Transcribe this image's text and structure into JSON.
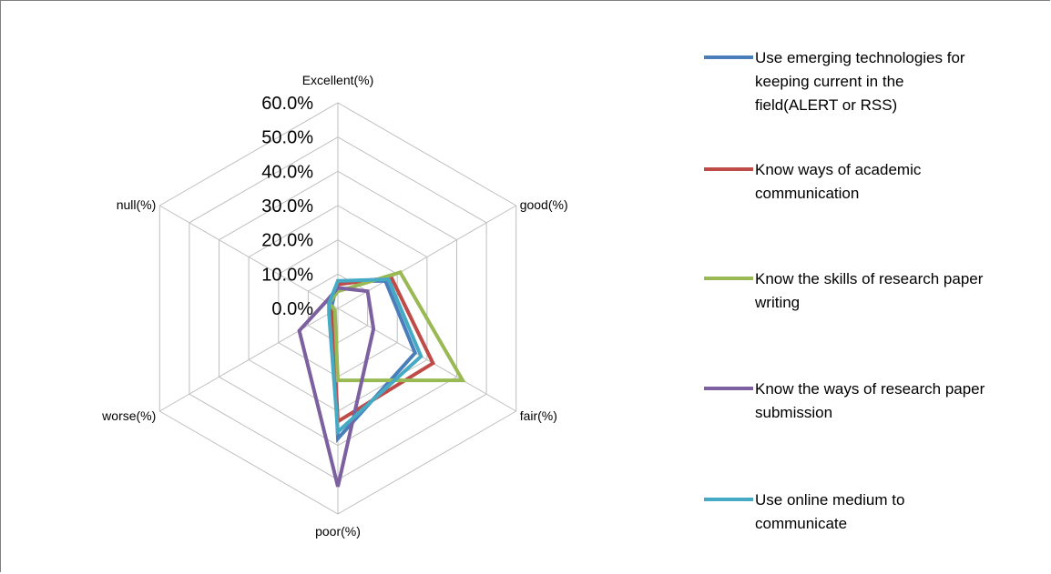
{
  "chart_data": {
    "type": "radar",
    "title": "",
    "categories": [
      "Excellent(%)",
      "good(%)",
      "fair(%)",
      "poor(%)",
      "worse(%)",
      "null(%)"
    ],
    "tick_labels": [
      "0.0%",
      "10.0%",
      "20.0%",
      "30.0%",
      "40.0%",
      "50.0%",
      "60.0%"
    ],
    "rlim": [
      0,
      60
    ],
    "grid": true,
    "legend_position": "right",
    "series": [
      {
        "name": "Use emerging technologies  for keeping current in the field(ALERT or RSS)",
        "legend_lines": [
          "Use emerging technologies  for",
          "keeping current in the",
          "field(ALERT or RSS)"
        ],
        "color": "#4a7ebb",
        "values": [
          8,
          16,
          26,
          38,
          2,
          2
        ]
      },
      {
        "name": "Know ways of academic communication",
        "legend_lines": [
          "Know ways of academic",
          "communication"
        ],
        "color": "#be4b48",
        "values": [
          7,
          18,
          32,
          33,
          2,
          3
        ]
      },
      {
        "name": "Know the skills of research paper writing",
        "legend_lines": [
          "Know the skills of research paper",
          "writing"
        ],
        "color": "#98b954",
        "values": [
          5,
          21,
          42,
          21,
          1,
          3
        ]
      },
      {
        "name": "Know the ways of research paper submission",
        "legend_lines": [
          "Know the ways of research paper",
          "submission"
        ],
        "color": "#7d60a0",
        "values": [
          6,
          10,
          12,
          52,
          13,
          4
        ]
      },
      {
        "name": "Use online medium to communicate",
        "legend_lines": [
          "Use online medium to",
          "communicate"
        ],
        "color": "#46aac5",
        "values": [
          8,
          17,
          28,
          36,
          3,
          3
        ]
      }
    ]
  }
}
